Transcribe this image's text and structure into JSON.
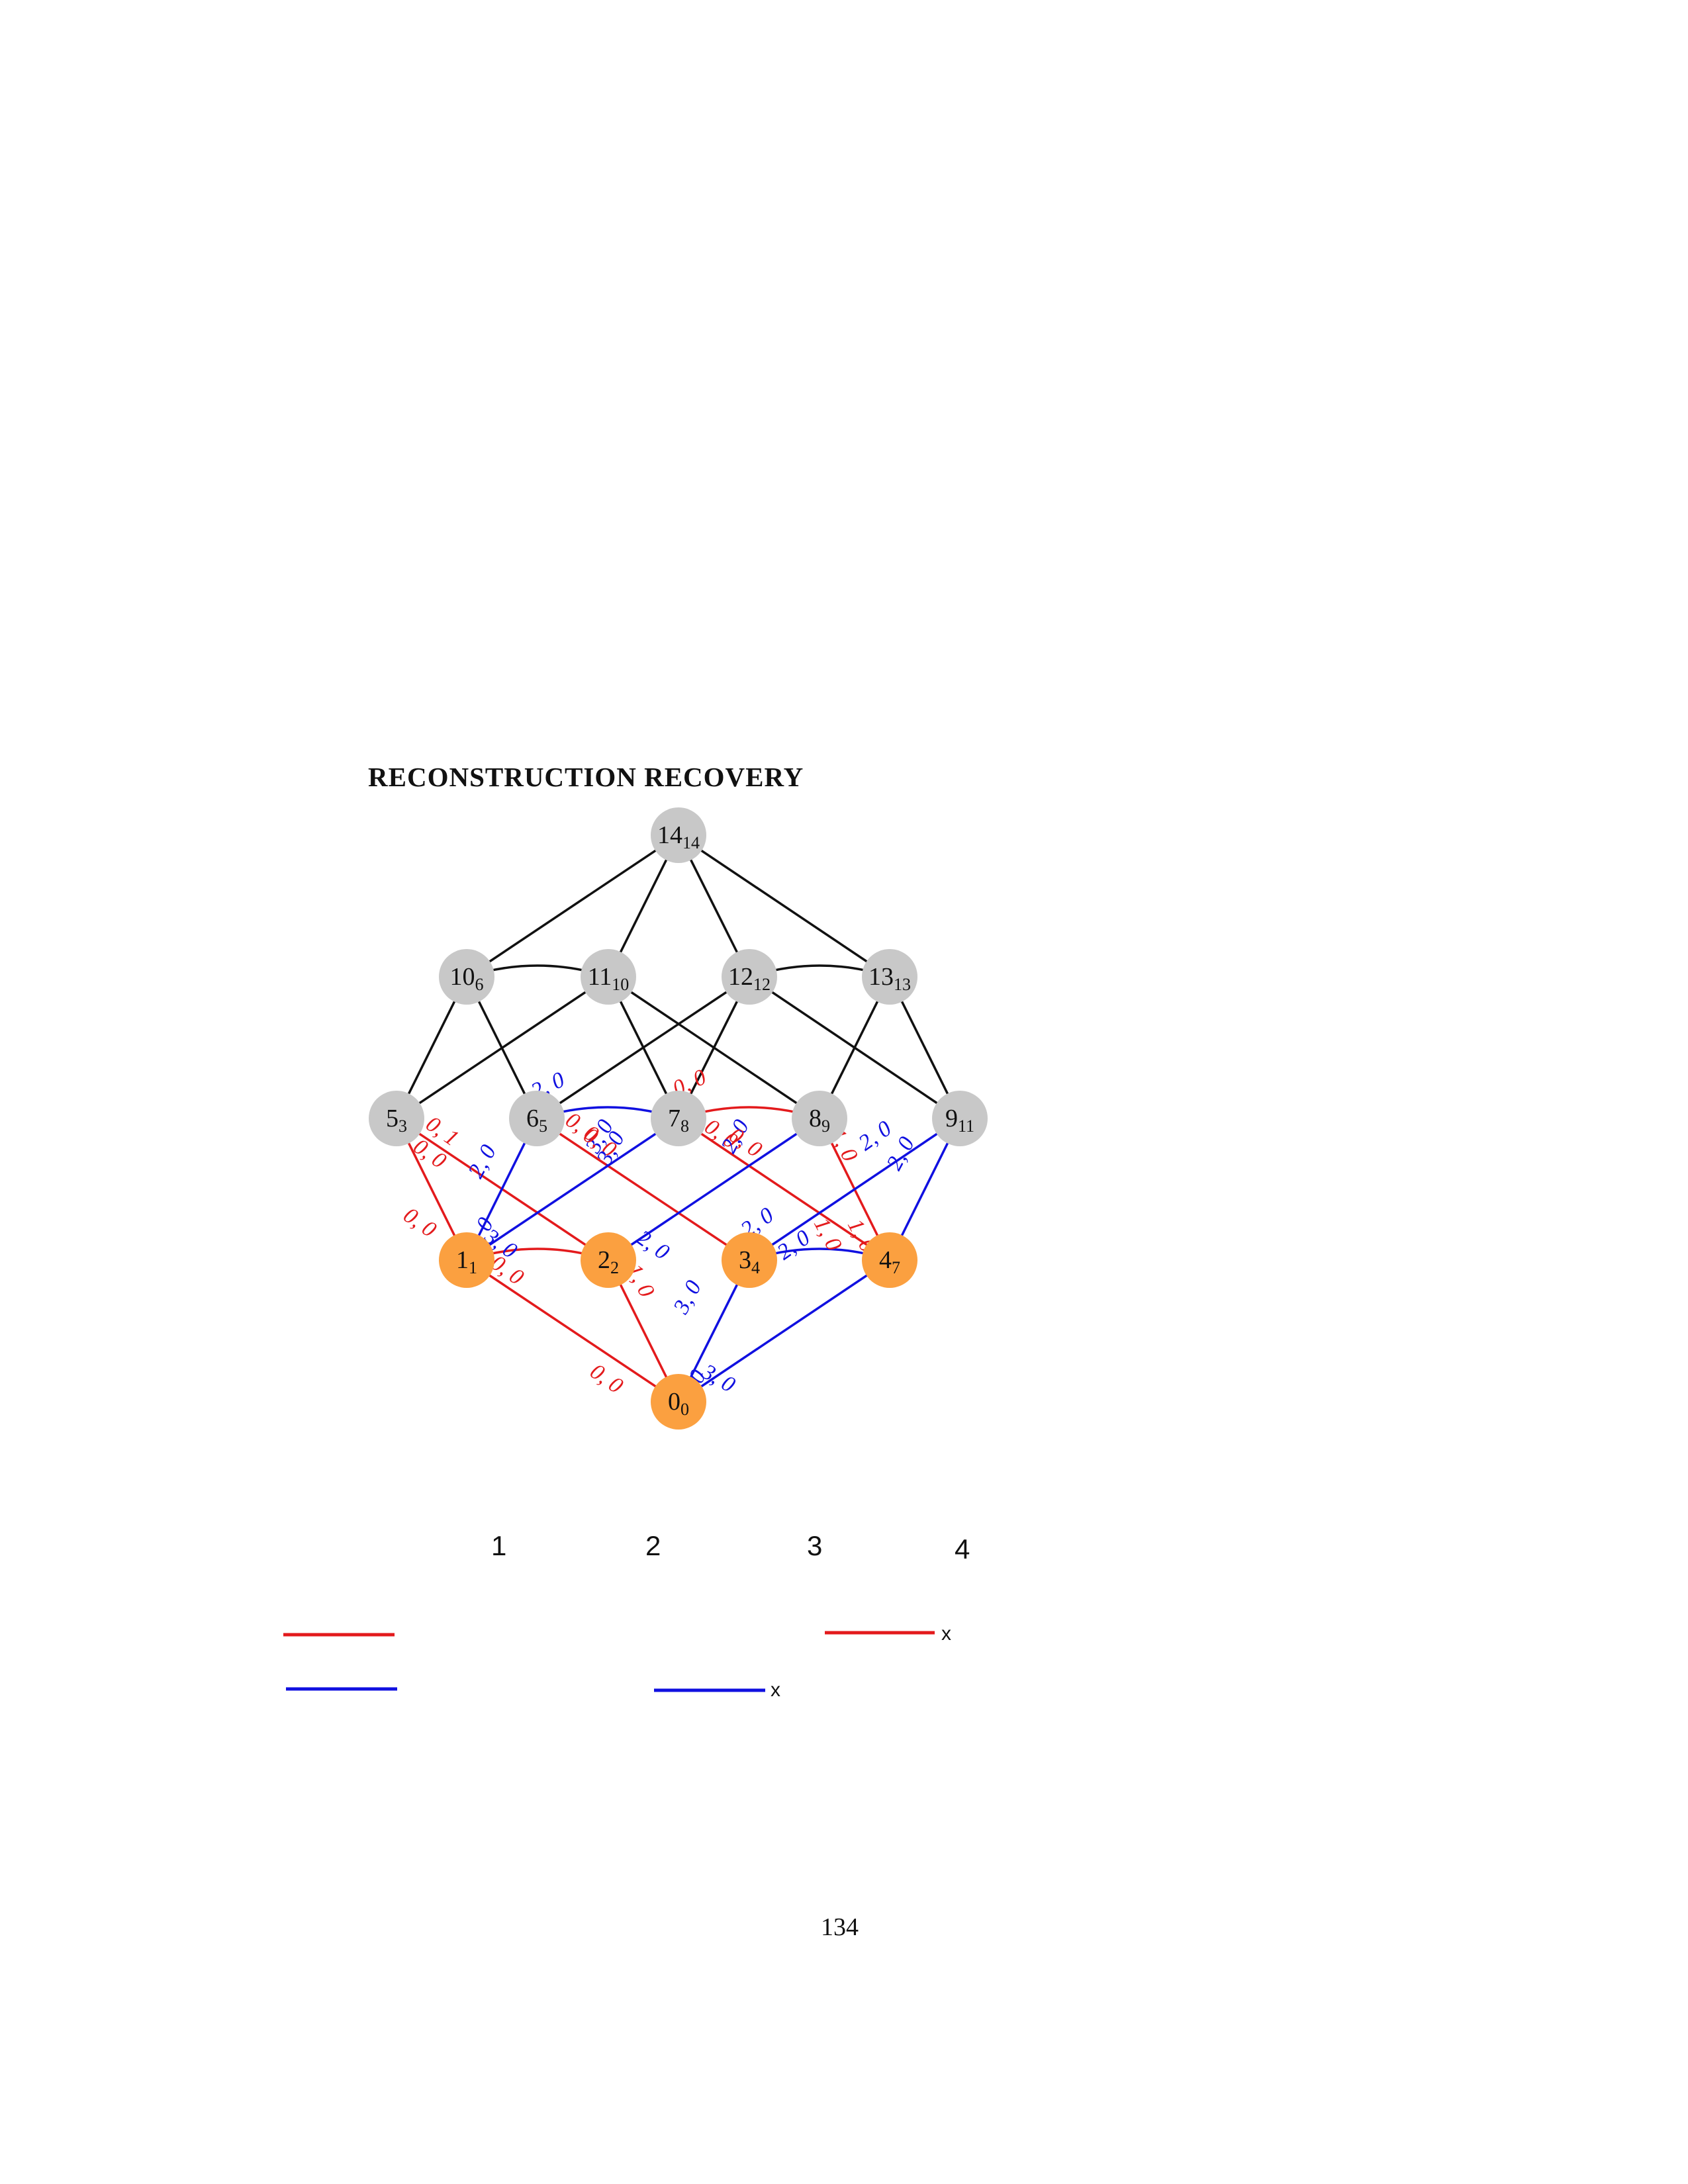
{
  "header": {
    "title": "RECONSTRUCTION RECOVERY"
  },
  "page": {
    "number": "134"
  },
  "colors": {
    "gray_node": "#c8c8c8",
    "orange_node": "#fba040",
    "edge_black": "#111111",
    "edge_red": "#e31a1c",
    "edge_blue": "#1010e0"
  },
  "diagram": {
    "nodes": [
      {
        "id": "n14",
        "main": "14",
        "sub": "14",
        "kind": "gray"
      },
      {
        "id": "n10",
        "main": "10",
        "sub": "6",
        "kind": "gray"
      },
      {
        "id": "n11",
        "main": "11",
        "sub": "10",
        "kind": "gray"
      },
      {
        "id": "n12",
        "main": "12",
        "sub": "12",
        "kind": "gray"
      },
      {
        "id": "n13",
        "main": "13",
        "sub": "13",
        "kind": "gray"
      },
      {
        "id": "n5",
        "main": "5",
        "sub": "3",
        "kind": "gray"
      },
      {
        "id": "n6",
        "main": "6",
        "sub": "5",
        "kind": "gray"
      },
      {
        "id": "n7",
        "main": "7",
        "sub": "8",
        "kind": "gray"
      },
      {
        "id": "n8",
        "main": "8",
        "sub": "9",
        "kind": "gray"
      },
      {
        "id": "n9",
        "main": "9",
        "sub": "11",
        "kind": "gray"
      },
      {
        "id": "n1",
        "main": "1",
        "sub": "1",
        "kind": "orange"
      },
      {
        "id": "n2",
        "main": "2",
        "sub": "2",
        "kind": "orange"
      },
      {
        "id": "n3",
        "main": "3",
        "sub": "4",
        "kind": "orange"
      },
      {
        "id": "n4",
        "main": "4",
        "sub": "7",
        "kind": "orange"
      },
      {
        "id": "n0",
        "main": "0",
        "sub": "0",
        "kind": "orange"
      }
    ],
    "edges": [
      {
        "from": "n14",
        "to": "n10",
        "color": "black"
      },
      {
        "from": "n14",
        "to": "n11",
        "color": "black"
      },
      {
        "from": "n14",
        "to": "n12",
        "color": "black"
      },
      {
        "from": "n14",
        "to": "n13",
        "color": "black"
      },
      {
        "from": "n10",
        "to": "n11",
        "color": "black",
        "curve": true
      },
      {
        "from": "n12",
        "to": "n13",
        "color": "black",
        "curve": true
      },
      {
        "from": "n10",
        "to": "n5",
        "color": "black"
      },
      {
        "from": "n10",
        "to": "n6",
        "color": "black"
      },
      {
        "from": "n11",
        "to": "n5",
        "color": "black"
      },
      {
        "from": "n11",
        "to": "n7",
        "color": "black"
      },
      {
        "from": "n11",
        "to": "n8",
        "color": "black"
      },
      {
        "from": "n12",
        "to": "n6",
        "color": "black"
      },
      {
        "from": "n12",
        "to": "n7",
        "color": "black"
      },
      {
        "from": "n12",
        "to": "n9",
        "color": "black"
      },
      {
        "from": "n13",
        "to": "n8",
        "color": "black"
      },
      {
        "from": "n13",
        "to": "n9",
        "color": "black"
      },
      {
        "from": "n6",
        "to": "n7",
        "color": "blue",
        "curve": true
      },
      {
        "from": "n7",
        "to": "n8",
        "color": "red",
        "curve": true
      },
      {
        "from": "n5",
        "to": "n1",
        "color": "red"
      },
      {
        "from": "n5",
        "to": "n2",
        "color": "red"
      },
      {
        "from": "n6",
        "to": "n1",
        "color": "blue"
      },
      {
        "from": "n6",
        "to": "n3",
        "color": "red"
      },
      {
        "from": "n7",
        "to": "n1",
        "color": "blue"
      },
      {
        "from": "n7",
        "to": "n4",
        "color": "red"
      },
      {
        "from": "n8",
        "to": "n2",
        "color": "blue"
      },
      {
        "from": "n8",
        "to": "n4",
        "color": "red"
      },
      {
        "from": "n9",
        "to": "n3",
        "color": "blue"
      },
      {
        "from": "n9",
        "to": "n4",
        "color": "blue"
      },
      {
        "from": "n1",
        "to": "n2",
        "color": "red",
        "curve": true
      },
      {
        "from": "n3",
        "to": "n4",
        "color": "blue",
        "curve": true
      },
      {
        "from": "n1",
        "to": "n0",
        "color": "red"
      },
      {
        "from": "n2",
        "to": "n0",
        "color": "red"
      },
      {
        "from": "n3",
        "to": "n0",
        "color": "blue"
      },
      {
        "from": "n4",
        "to": "n0",
        "color": "blue"
      }
    ],
    "edge_labels": [
      {
        "text": "2, 0",
        "color": "blue"
      },
      {
        "text": "0, 0",
        "color": "red"
      },
      {
        "text": "0, 1",
        "color": "red"
      },
      {
        "text": "0, 0",
        "color": "red"
      },
      {
        "text": "2, 0",
        "color": "blue"
      },
      {
        "text": "0, 0",
        "color": "red"
      },
      {
        "text": "3, 0",
        "color": "blue"
      },
      {
        "text": "0, 0",
        "color": "red"
      },
      {
        "text": "3, 0",
        "color": "blue"
      },
      {
        "text": "0, 0",
        "color": "red"
      },
      {
        "text": "1, 0",
        "color": "red"
      },
      {
        "text": "2, 0",
        "color": "blue"
      },
      {
        "text": "2, 0",
        "color": "blue"
      },
      {
        "text": "0, 0",
        "color": "red"
      },
      {
        "text": "2, 0",
        "color": "blue"
      },
      {
        "text": "0, 0",
        "color": "red"
      },
      {
        "text": "0, 0",
        "color": "red"
      },
      {
        "text": "3, 0",
        "color": "blue"
      },
      {
        "text": "2, 0",
        "color": "blue"
      },
      {
        "text": "2, 0",
        "color": "blue"
      },
      {
        "text": "1, 0",
        "color": "red"
      },
      {
        "text": "3, 0",
        "color": "blue"
      },
      {
        "text": "2, 0",
        "color": "blue"
      },
      {
        "text": "1, 0",
        "color": "red"
      },
      {
        "text": "2, 0",
        "color": "blue"
      },
      {
        "text": "1, 0",
        "color": "red"
      },
      {
        "text": "0, 0",
        "color": "red"
      },
      {
        "text": "2, 0",
        "color": "blue"
      },
      {
        "text": "3, 0",
        "color": "blue"
      }
    ]
  },
  "legend": {
    "columns": [
      "1",
      "2",
      "3",
      "4"
    ],
    "x_marks": [
      "x",
      "x"
    ]
  }
}
